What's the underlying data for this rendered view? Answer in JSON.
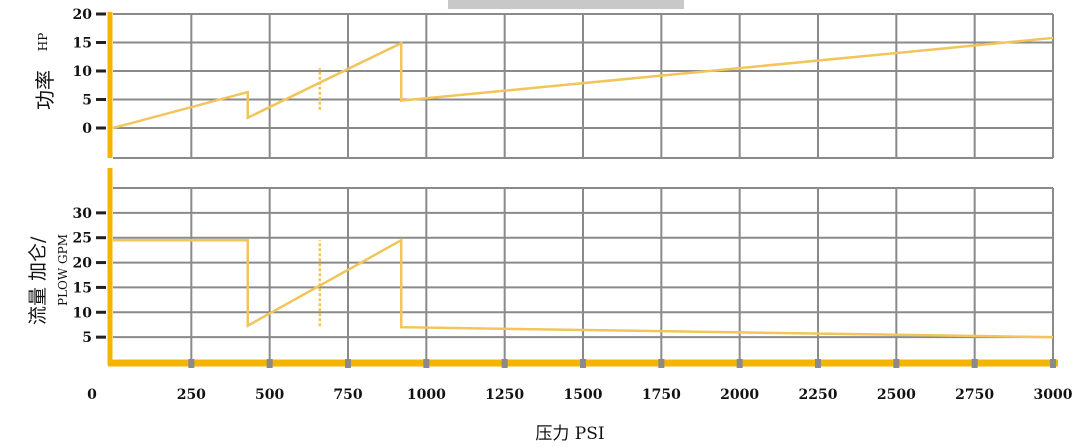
{
  "chart_data": [
    {
      "type": "line",
      "ylabel": "功率",
      "ylabel_unit": "HP",
      "ylim": [
        0,
        20
      ],
      "yticks": [
        "0",
        "5",
        "10",
        "15",
        "20"
      ],
      "xlim": [
        0,
        3000
      ],
      "series": [
        {
          "x": [
            0,
            430,
            430,
            920,
            920,
            3000
          ],
          "y": [
            0,
            6.3,
            1.8,
            14.9,
            4.8,
            15.8
          ]
        }
      ],
      "vertical_markers": [
        {
          "x": 660,
          "y": [
            3.2,
            10.5
          ]
        }
      ]
    },
    {
      "type": "line",
      "ylabel": "流量 加仑/",
      "ylabel_unit": "PLOW GPM",
      "ylim": [
        0,
        35
      ],
      "yticks": [
        "5",
        "10",
        "15",
        "20",
        "25",
        "30"
      ],
      "xlim": [
        0,
        3000
      ],
      "xlabel": "压力 PSI",
      "xticks": [
        "0",
        "250",
        "500",
        "750",
        "1000",
        "1250",
        "1500",
        "1750",
        "2000",
        "2250",
        "2500",
        "2750",
        "3000"
      ],
      "series": [
        {
          "x": [
            0,
            430,
            430,
            920,
            920,
            3000
          ],
          "y": [
            24.5,
            24.5,
            7.3,
            24.5,
            7.0,
            5.0
          ]
        }
      ],
      "vertical_markers": [
        {
          "x": 660,
          "y": [
            7.2,
            24.5
          ]
        }
      ]
    }
  ],
  "colors": {
    "line": "#f2c55a",
    "axis": "#f5b400",
    "grid": "#8a8a8a",
    "header_bar": "#c8c8c8"
  }
}
